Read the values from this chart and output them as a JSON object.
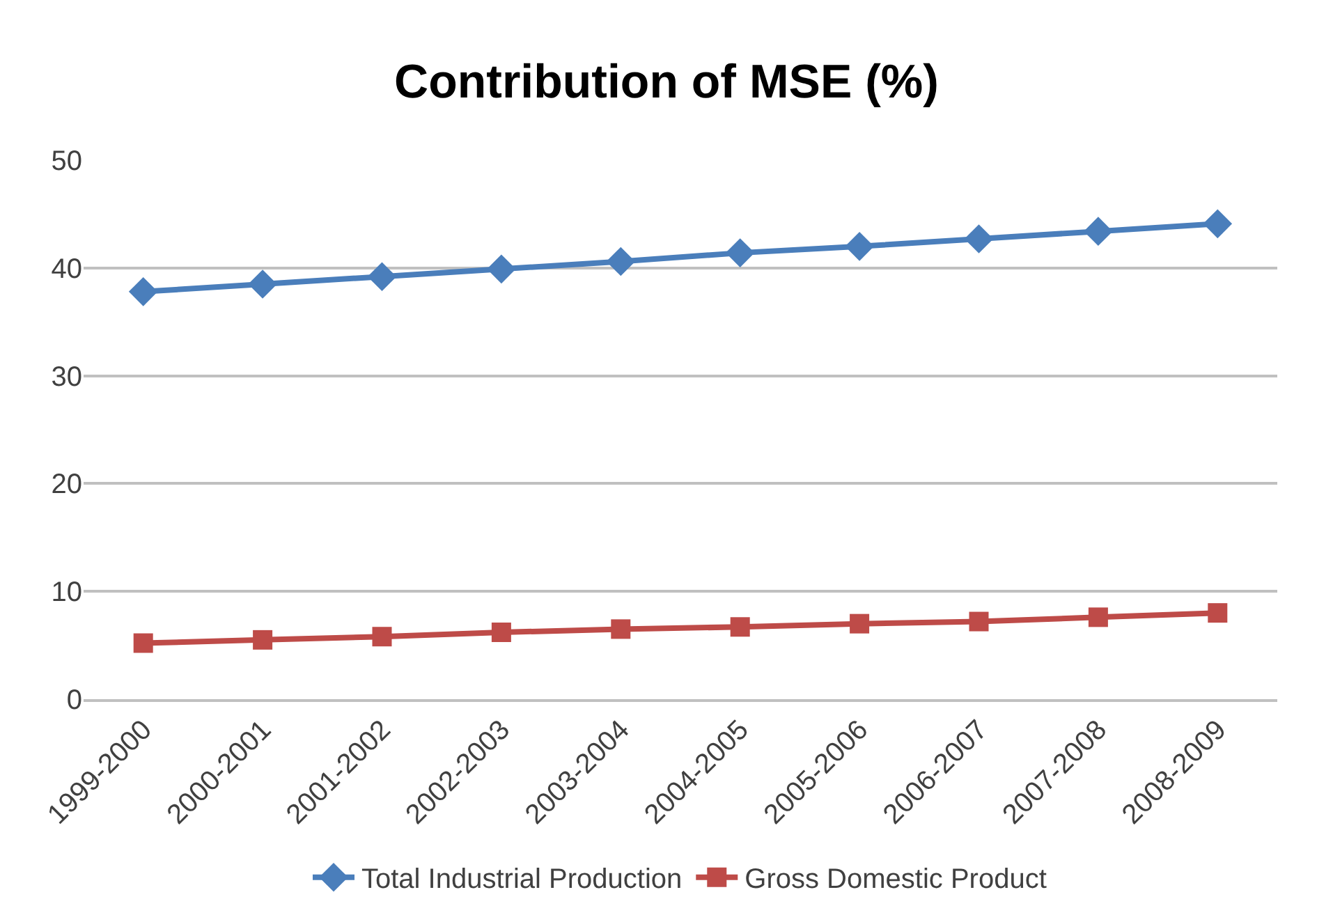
{
  "chart_data": {
    "type": "line",
    "title": "Contribution of MSE (%)",
    "categories": [
      "1999-2000",
      "2000-2001",
      "2001-2002",
      "2002-2003",
      "2003-2004",
      "2004-2005",
      "2005-2006",
      "2006-2007",
      "2007-2008",
      "2008-2009"
    ],
    "series": [
      {
        "name": "Total Industrial Production",
        "color": "#4a7ebb",
        "marker": "diamond",
        "values": [
          37.8,
          38.5,
          39.2,
          39.9,
          40.6,
          41.4,
          42.0,
          42.7,
          43.4,
          44.1
        ]
      },
      {
        "name": "Gross Domestic Product",
        "color": "#be4b48",
        "marker": "square",
        "values": [
          5.2,
          5.5,
          5.8,
          6.2,
          6.5,
          6.7,
          7.0,
          7.2,
          7.6,
          8.0
        ]
      }
    ],
    "ylim": [
      0,
      50
    ],
    "yticks": [
      0,
      10,
      20,
      30,
      40,
      50
    ],
    "grid": "y",
    "legend": "bottom",
    "line_style": "solid"
  }
}
